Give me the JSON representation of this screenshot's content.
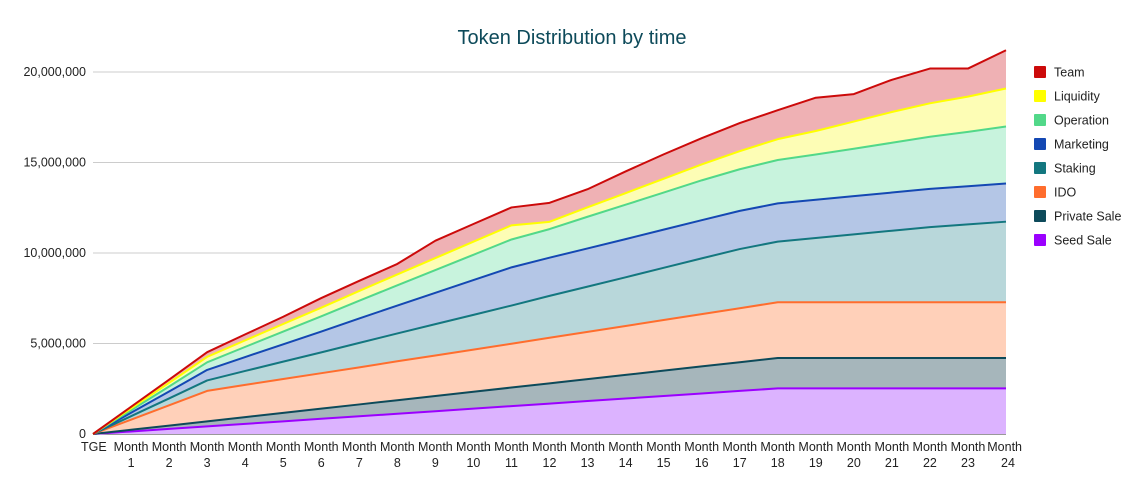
{
  "chart_data": {
    "type": "area",
    "stacked": true,
    "title": "Token Distribution by time",
    "xlabel": "",
    "ylabel": "",
    "ylim": [
      0,
      20000000
    ],
    "yticks": [
      0,
      5000000,
      10000000,
      15000000,
      20000000
    ],
    "ytick_labels": [
      "0",
      "5,000,000",
      "10,000,000",
      "15,000,000",
      "20,000,000"
    ],
    "grid": true,
    "legend_position": "right",
    "categories": [
      {
        "line1": "TGE",
        "line2": ""
      },
      {
        "line1": "Month",
        "line2": "1"
      },
      {
        "line1": "Month",
        "line2": "2"
      },
      {
        "line1": "Month",
        "line2": "3"
      },
      {
        "line1": "Month",
        "line2": "4"
      },
      {
        "line1": "Month",
        "line2": "5"
      },
      {
        "line1": "Month",
        "line2": "6"
      },
      {
        "line1": "Month",
        "line2": "7"
      },
      {
        "line1": "Month",
        "line2": "8"
      },
      {
        "line1": "Month",
        "line2": "9"
      },
      {
        "line1": "Month",
        "line2": "10"
      },
      {
        "line1": "Month",
        "line2": "11"
      },
      {
        "line1": "Month",
        "line2": "12"
      },
      {
        "line1": "Month",
        "line2": "13"
      },
      {
        "line1": "Month",
        "line2": "14"
      },
      {
        "line1": "Month",
        "line2": "15"
      },
      {
        "line1": "Month",
        "line2": "16"
      },
      {
        "line1": "Month",
        "line2": "17"
      },
      {
        "line1": "Month",
        "line2": "18"
      },
      {
        "line1": "Month",
        "line2": "19"
      },
      {
        "line1": "Month",
        "line2": "20"
      },
      {
        "line1": "Month",
        "line2": "21"
      },
      {
        "line1": "Month",
        "line2": "22"
      },
      {
        "line1": "Month",
        "line2": "23"
      },
      {
        "line1": "Month",
        "line2": "24"
      }
    ],
    "series": [
      {
        "name": "Seed Sale",
        "line": "#9b00ff",
        "fill": "#dcb3ff",
        "values": [
          0,
          140000,
          280000,
          420000,
          560000,
          700000,
          840000,
          980000,
          1120000,
          1260000,
          1400000,
          1540000,
          1680000,
          1820000,
          1960000,
          2100000,
          2240000,
          2380000,
          2520000,
          2520000,
          2520000,
          2520000,
          2520000,
          2520000,
          2520000
        ]
      },
      {
        "name": "Private Sale",
        "line": "#0d4a5a",
        "fill": "#a6b6bb",
        "values": [
          0,
          93000,
          186000,
          280000,
          373000,
          467000,
          560000,
          653000,
          747000,
          840000,
          933000,
          1027000,
          1120000,
          1213000,
          1307000,
          1400000,
          1493000,
          1587000,
          1680000,
          1680000,
          1680000,
          1680000,
          1680000,
          1680000,
          1680000
        ]
      },
      {
        "name": "IDO",
        "line": "#ff6d2d",
        "fill": "#ffd0b9",
        "values": [
          0,
          560000,
          1120000,
          1680000,
          1780000,
          1870000,
          1960000,
          2050000,
          2150000,
          2240000,
          2330000,
          2420000,
          2520000,
          2610000,
          2700000,
          2800000,
          2890000,
          2980000,
          3080000,
          3080000,
          3080000,
          3080000,
          3080000,
          3080000,
          3080000
        ]
      },
      {
        "name": "Staking",
        "line": "#13777f",
        "fill": "#b8d7da",
        "values": [
          0,
          190000,
          380000,
          580000,
          770000,
          960000,
          1150000,
          1350000,
          1540000,
          1730000,
          1920000,
          2110000,
          2310000,
          2500000,
          2690000,
          2880000,
          3080000,
          3270000,
          3350000,
          3550000,
          3750000,
          3950000,
          4150000,
          4300000,
          4450000
        ]
      },
      {
        "name": "Marketing",
        "line": "#1448b3",
        "fill": "#b4c6e6",
        "values": [
          0,
          190000,
          380000,
          580000,
          770000,
          960000,
          1150000,
          1350000,
          1540000,
          1730000,
          1920000,
          2110000,
          2110000,
          2110000,
          2110000,
          2110000,
          2110000,
          2110000,
          2110000,
          2110000,
          2110000,
          2110000,
          2110000,
          2110000,
          2110000
        ]
      },
      {
        "name": "Operation",
        "line": "#52d889",
        "fill": "#c8f3dd",
        "values": [
          0,
          140000,
          280000,
          420000,
          560000,
          700000,
          840000,
          980000,
          1120000,
          1260000,
          1400000,
          1540000,
          1580000,
          1750000,
          1900000,
          2050000,
          2200000,
          2300000,
          2400000,
          2500000,
          2620000,
          2750000,
          2880000,
          3000000,
          3150000
        ]
      },
      {
        "name": "Liquidity",
        "line": "#ffff00",
        "fill": "#fdfdb5",
        "values": [
          0,
          100000,
          200000,
          300000,
          360000,
          420000,
          480000,
          540000,
          600000,
          660000,
          720000,
          780000,
          400000,
          520000,
          640000,
          760000,
          880000,
          1000000,
          1150000,
          1300000,
          1500000,
          1700000,
          1850000,
          1950000,
          2100000
        ]
      },
      {
        "name": "Team",
        "line": "#cc0a0a",
        "fill": "#efb1b4",
        "values": [
          0,
          87000,
          174000,
          260000,
          330000,
          400000,
          530000,
          560000,
          580000,
          960000,
          980000,
          990000,
          1050000,
          1000000,
          1200000,
          1350000,
          1450000,
          1550000,
          1600000,
          1840000,
          1520000,
          1780000,
          1920000,
          1550000,
          2110000
        ]
      }
    ]
  }
}
